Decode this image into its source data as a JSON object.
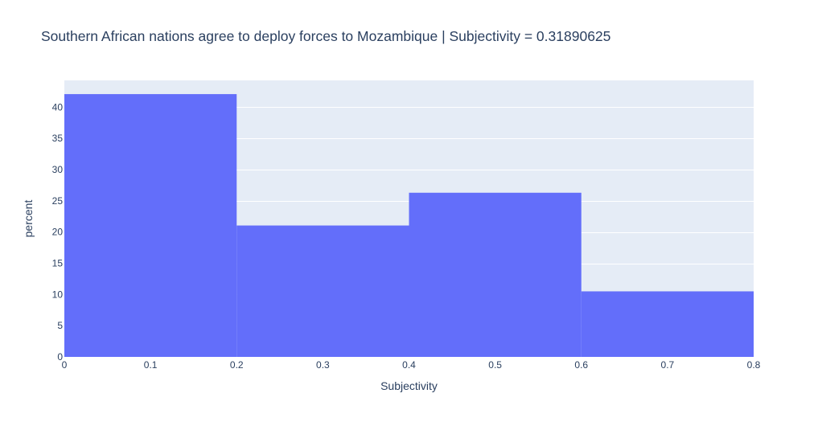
{
  "chart_data": {
    "type": "bar",
    "histogram": true,
    "title": "Southern African nations agree to deploy forces to Mozambique  | Subjectivity = 0.31890625",
    "xlabel": "Subjectivity",
    "ylabel": "percent",
    "xlim": [
      0,
      0.8
    ],
    "ylim": [
      0,
      44.3
    ],
    "x_ticks": [
      0,
      0.1,
      0.2,
      0.3,
      0.4,
      0.5,
      0.6,
      0.7,
      0.8
    ],
    "y_ticks": [
      0,
      5,
      10,
      15,
      20,
      25,
      30,
      35,
      40
    ],
    "bins": [
      {
        "start": 0.0,
        "end": 0.2,
        "value": 42.1
      },
      {
        "start": 0.2,
        "end": 0.4,
        "value": 21.05
      },
      {
        "start": 0.4,
        "end": 0.6,
        "value": 26.3
      },
      {
        "start": 0.6,
        "end": 0.8,
        "value": 10.5
      }
    ],
    "grid": true,
    "legend": "none",
    "colors": {
      "bar": "#636efa",
      "plot_background": "#e5ecf6",
      "gridline": "#ffffff",
      "text": "#2a3f5f"
    }
  }
}
